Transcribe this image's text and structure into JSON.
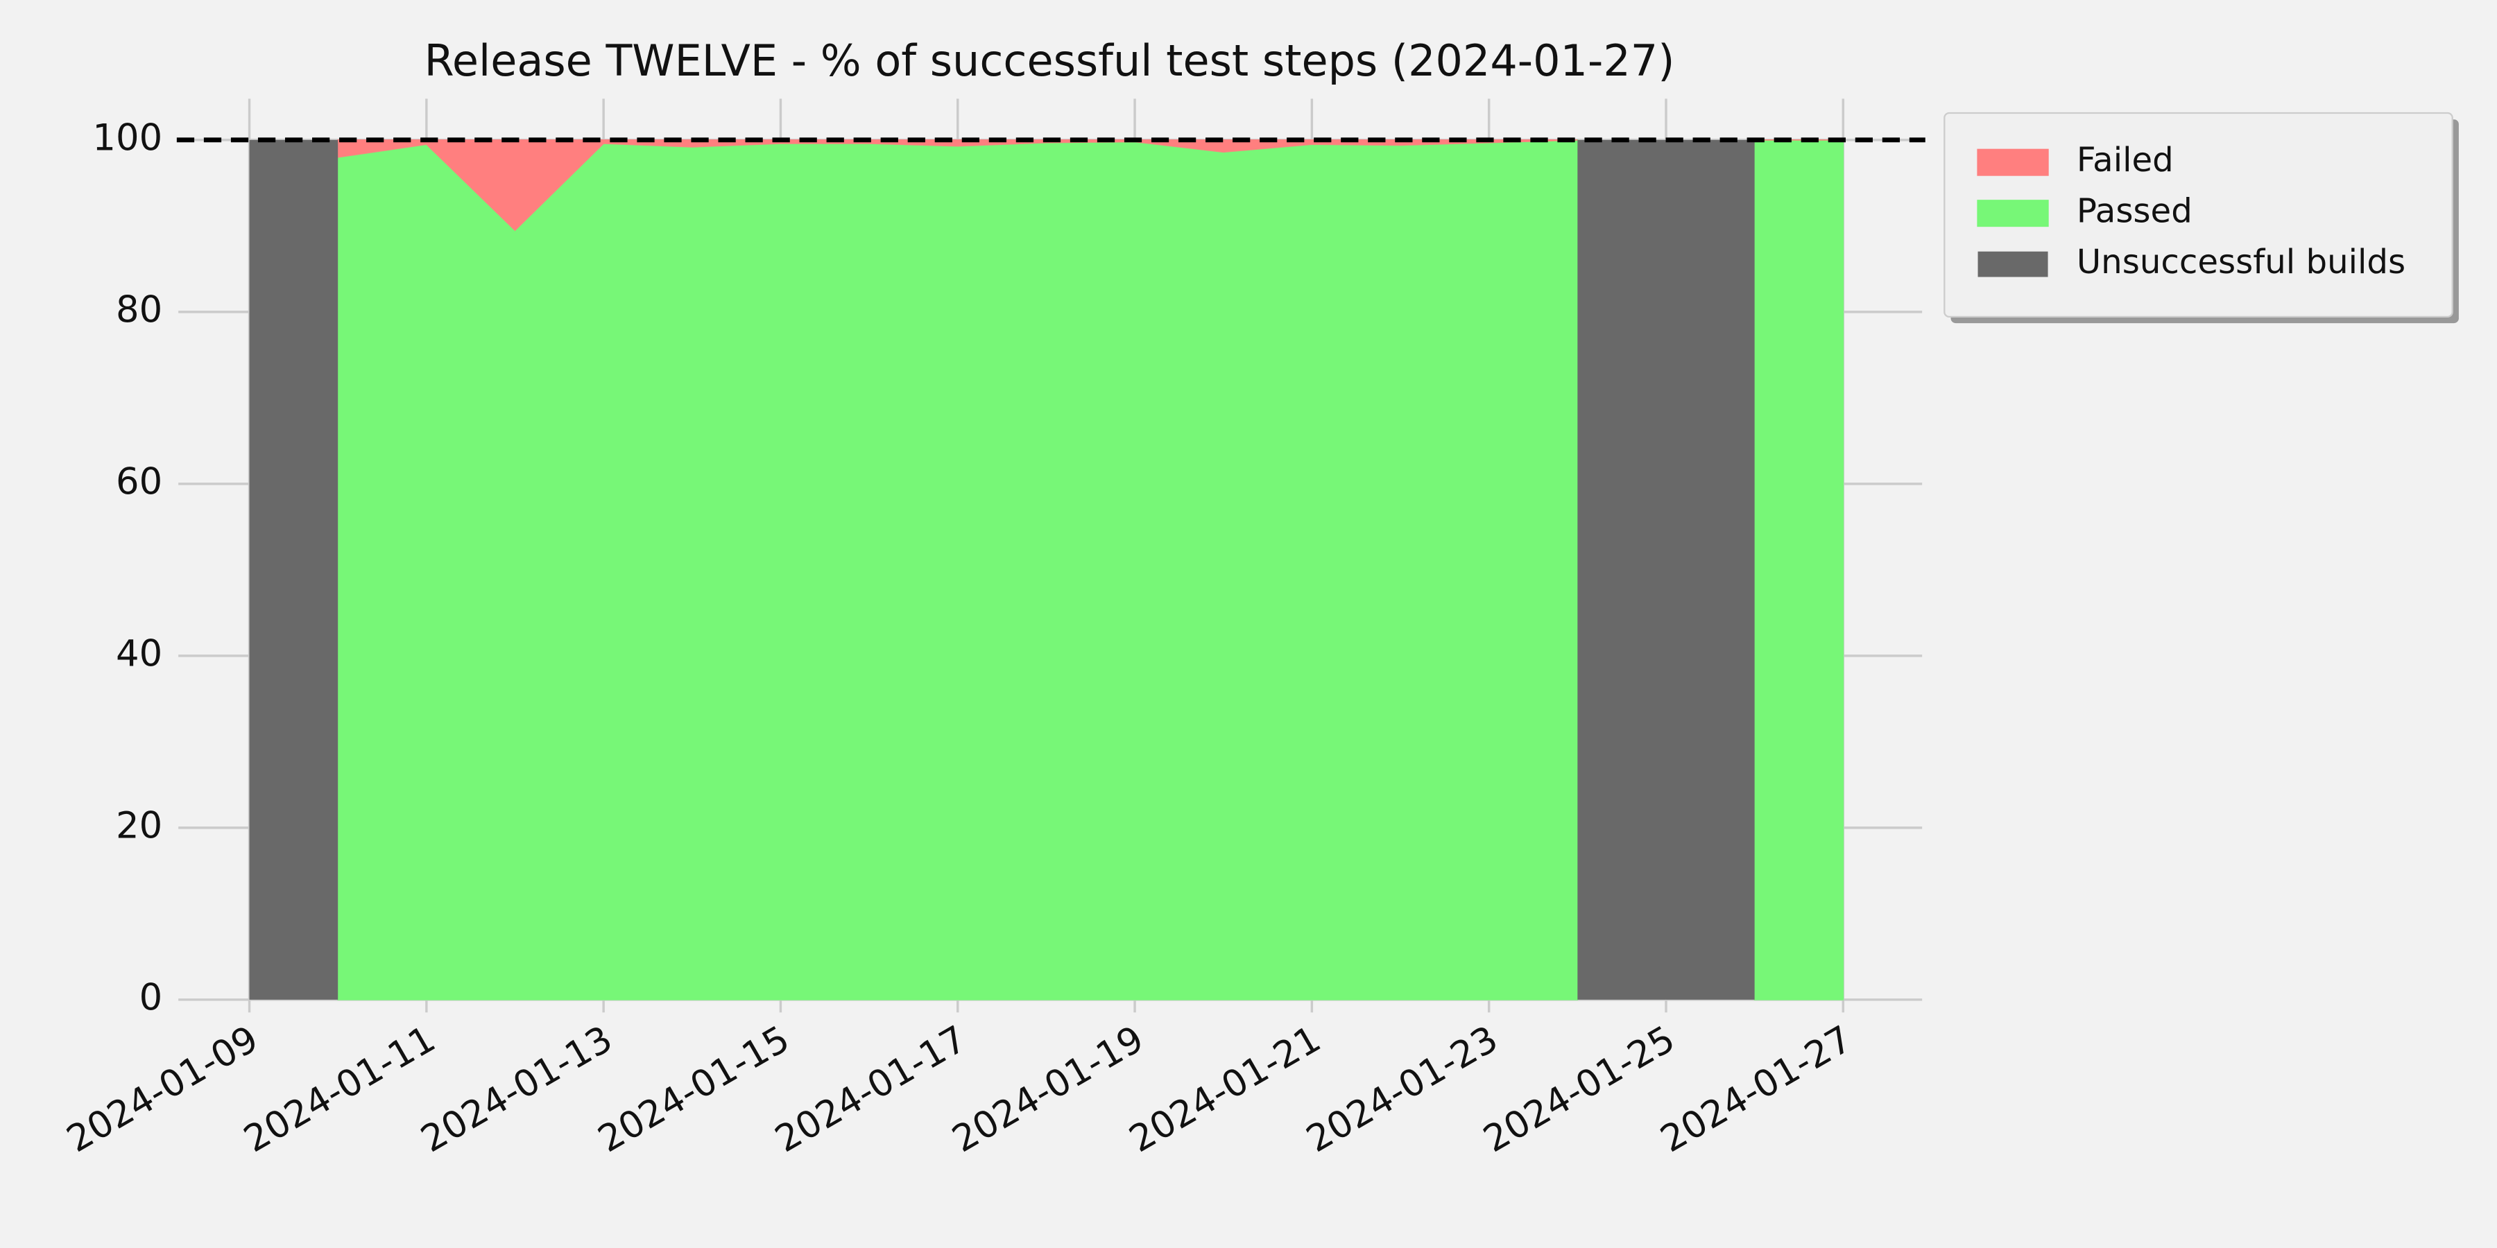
{
  "chart_data": {
    "type": "area",
    "title": "Release TWELVE - % of successful test steps (2024-01-27)",
    "x": [
      "2024-01-09",
      "2024-01-10",
      "2024-01-11",
      "2024-01-12",
      "2024-01-13",
      "2024-01-14",
      "2024-01-15",
      "2024-01-16",
      "2024-01-17",
      "2024-01-18",
      "2024-01-19",
      "2024-01-20",
      "2024-01-21",
      "2024-01-22",
      "2024-01-23",
      "2024-01-24",
      "2024-01-25",
      "2024-01-26",
      "2024-01-27"
    ],
    "series": [
      {
        "name": "Passed",
        "type": "area",
        "color": "#77f777",
        "values": [
          null,
          98,
          99.5,
          89.5,
          99.6,
          99.2,
          99.6,
          99.6,
          99.3,
          99.7,
          99.8,
          98.6,
          99.5,
          99.4,
          99.7,
          100,
          null,
          100,
          100
        ]
      },
      {
        "name": "Failed",
        "type": "area",
        "color": "#ff7f7f",
        "values": [
          null,
          2,
          0.5,
          10.5,
          0.4,
          0.8,
          0.4,
          0.4,
          0.7,
          0.3,
          0.2,
          1.4,
          0.5,
          0.6,
          0.3,
          0,
          null,
          0,
          0
        ]
      },
      {
        "name": "Unsuccessful builds",
        "type": "bar",
        "color": "#696969",
        "values": [
          100,
          null,
          null,
          null,
          null,
          null,
          null,
          null,
          null,
          null,
          null,
          null,
          null,
          null,
          null,
          100,
          100,
          null,
          null
        ]
      }
    ],
    "legend_order": [
      1,
      0,
      2
    ],
    "legend": "outside-upper-right",
    "reference_line": 100,
    "xlim": [
      "2024-01-08",
      "2024-01-28"
    ],
    "xticks": [
      "2024-01-09",
      "2024-01-11",
      "2024-01-13",
      "2024-01-15",
      "2024-01-17",
      "2024-01-19",
      "2024-01-21",
      "2024-01-23",
      "2024-01-25",
      "2024-01-27"
    ],
    "ylim": [
      0,
      104.8
    ],
    "yticks": [
      0,
      20,
      40,
      60,
      80,
      100
    ],
    "grid": true
  }
}
